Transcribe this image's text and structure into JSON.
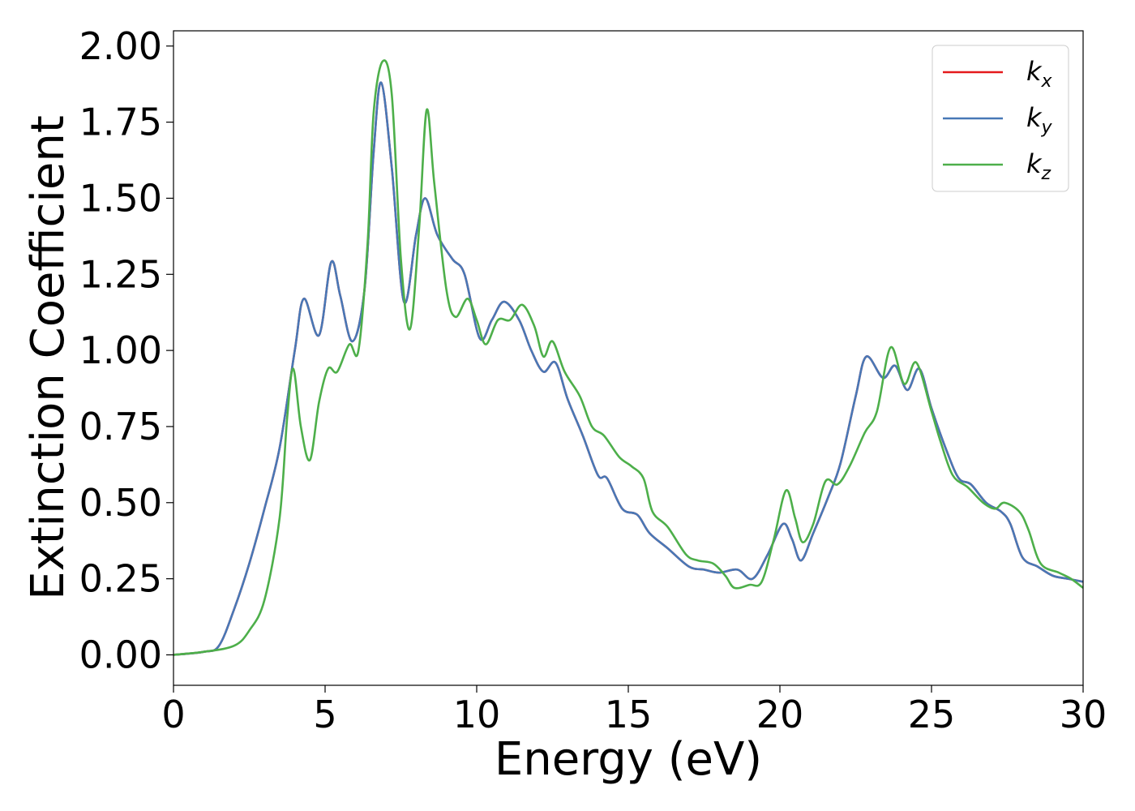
{
  "chart_data": {
    "type": "line",
    "title": "",
    "xlabel": "Energy (eV)",
    "ylabel": "Extinction Coefficient",
    "xlim": [
      0,
      30
    ],
    "ylim": [
      -0.1,
      2.05
    ],
    "xticks": [
      0,
      5,
      10,
      15,
      20,
      25,
      30
    ],
    "xtick_labels": [
      "0",
      "5",
      "10",
      "15",
      "20",
      "25",
      "30"
    ],
    "yticks": [
      0.0,
      0.25,
      0.5,
      0.75,
      1.0,
      1.25,
      1.5,
      1.75,
      2.0
    ],
    "ytick_labels": [
      "0.00",
      "0.25",
      "0.50",
      "0.75",
      "1.00",
      "1.25",
      "1.50",
      "1.75",
      "2.00"
    ],
    "grid": false,
    "legend_position": "top-right",
    "series": [
      {
        "name": "k",
        "subscript": "x",
        "color": "#e41a1c",
        "points": [
          [
            0,
            0.0
          ],
          [
            1,
            0.01
          ],
          [
            1.5,
            0.03
          ],
          [
            2,
            0.15
          ],
          [
            2.5,
            0.3
          ],
          [
            3,
            0.48
          ],
          [
            3.5,
            0.68
          ],
          [
            4,
            1.0
          ],
          [
            4.3,
            1.17
          ],
          [
            4.8,
            1.05
          ],
          [
            5.2,
            1.29
          ],
          [
            5.5,
            1.18
          ],
          [
            5.9,
            1.03
          ],
          [
            6.3,
            1.2
          ],
          [
            6.6,
            1.65
          ],
          [
            6.85,
            1.88
          ],
          [
            7.2,
            1.6
          ],
          [
            7.6,
            1.16
          ],
          [
            8,
            1.38
          ],
          [
            8.3,
            1.5
          ],
          [
            8.7,
            1.38
          ],
          [
            9.2,
            1.3
          ],
          [
            9.6,
            1.25
          ],
          [
            10.1,
            1.04
          ],
          [
            10.5,
            1.1
          ],
          [
            10.9,
            1.16
          ],
          [
            11.4,
            1.1
          ],
          [
            11.8,
            1.0
          ],
          [
            12.2,
            0.93
          ],
          [
            12.6,
            0.96
          ],
          [
            13,
            0.84
          ],
          [
            13.5,
            0.72
          ],
          [
            14,
            0.59
          ],
          [
            14.3,
            0.58
          ],
          [
            14.8,
            0.48
          ],
          [
            15.3,
            0.46
          ],
          [
            15.7,
            0.4
          ],
          [
            16.3,
            0.35
          ],
          [
            17,
            0.29
          ],
          [
            17.5,
            0.28
          ],
          [
            18,
            0.27
          ],
          [
            18.6,
            0.28
          ],
          [
            19.1,
            0.25
          ],
          [
            19.6,
            0.33
          ],
          [
            20.1,
            0.43
          ],
          [
            20.4,
            0.38
          ],
          [
            20.7,
            0.31
          ],
          [
            21.1,
            0.4
          ],
          [
            21.6,
            0.52
          ],
          [
            22,
            0.63
          ],
          [
            22.5,
            0.85
          ],
          [
            22.85,
            0.98
          ],
          [
            23.4,
            0.91
          ],
          [
            23.8,
            0.95
          ],
          [
            24.2,
            0.87
          ],
          [
            24.6,
            0.94
          ],
          [
            25,
            0.81
          ],
          [
            25.5,
            0.67
          ],
          [
            25.9,
            0.58
          ],
          [
            26.3,
            0.56
          ],
          [
            26.8,
            0.5
          ],
          [
            27.3,
            0.47
          ],
          [
            27.6,
            0.43
          ],
          [
            28,
            0.32
          ],
          [
            28.5,
            0.29
          ],
          [
            29,
            0.26
          ],
          [
            29.5,
            0.25
          ],
          [
            30,
            0.24
          ]
        ]
      },
      {
        "name": "k",
        "subscript": "y",
        "color": "#4878b6",
        "points": [
          [
            0,
            0.0
          ],
          [
            1,
            0.01
          ],
          [
            1.5,
            0.03
          ],
          [
            2,
            0.15
          ],
          [
            2.5,
            0.3
          ],
          [
            3,
            0.48
          ],
          [
            3.5,
            0.68
          ],
          [
            4,
            1.0
          ],
          [
            4.3,
            1.17
          ],
          [
            4.8,
            1.05
          ],
          [
            5.2,
            1.29
          ],
          [
            5.5,
            1.18
          ],
          [
            5.9,
            1.03
          ],
          [
            6.3,
            1.2
          ],
          [
            6.6,
            1.65
          ],
          [
            6.85,
            1.88
          ],
          [
            7.2,
            1.6
          ],
          [
            7.6,
            1.16
          ],
          [
            8,
            1.38
          ],
          [
            8.3,
            1.5
          ],
          [
            8.7,
            1.38
          ],
          [
            9.2,
            1.3
          ],
          [
            9.6,
            1.25
          ],
          [
            10.1,
            1.04
          ],
          [
            10.5,
            1.1
          ],
          [
            10.9,
            1.16
          ],
          [
            11.4,
            1.1
          ],
          [
            11.8,
            1.0
          ],
          [
            12.2,
            0.93
          ],
          [
            12.6,
            0.96
          ],
          [
            13,
            0.84
          ],
          [
            13.5,
            0.72
          ],
          [
            14,
            0.59
          ],
          [
            14.3,
            0.58
          ],
          [
            14.8,
            0.48
          ],
          [
            15.3,
            0.46
          ],
          [
            15.7,
            0.4
          ],
          [
            16.3,
            0.35
          ],
          [
            17,
            0.29
          ],
          [
            17.5,
            0.28
          ],
          [
            18,
            0.27
          ],
          [
            18.6,
            0.28
          ],
          [
            19.1,
            0.25
          ],
          [
            19.6,
            0.33
          ],
          [
            20.1,
            0.43
          ],
          [
            20.4,
            0.38
          ],
          [
            20.7,
            0.31
          ],
          [
            21.1,
            0.4
          ],
          [
            21.6,
            0.52
          ],
          [
            22,
            0.63
          ],
          [
            22.5,
            0.85
          ],
          [
            22.85,
            0.98
          ],
          [
            23.4,
            0.91
          ],
          [
            23.8,
            0.95
          ],
          [
            24.2,
            0.87
          ],
          [
            24.6,
            0.94
          ],
          [
            25,
            0.81
          ],
          [
            25.5,
            0.67
          ],
          [
            25.9,
            0.58
          ],
          [
            26.3,
            0.56
          ],
          [
            26.8,
            0.5
          ],
          [
            27.3,
            0.47
          ],
          [
            27.6,
            0.43
          ],
          [
            28,
            0.32
          ],
          [
            28.5,
            0.29
          ],
          [
            29,
            0.26
          ],
          [
            29.5,
            0.25
          ],
          [
            30,
            0.24
          ]
        ]
      },
      {
        "name": "k",
        "subscript": "z",
        "color": "#4daf4a",
        "points": [
          [
            0,
            0.0
          ],
          [
            1,
            0.01
          ],
          [
            2,
            0.03
          ],
          [
            2.5,
            0.08
          ],
          [
            3,
            0.18
          ],
          [
            3.5,
            0.45
          ],
          [
            3.75,
            0.78
          ],
          [
            3.95,
            0.94
          ],
          [
            4.2,
            0.75
          ],
          [
            4.5,
            0.64
          ],
          [
            4.8,
            0.83
          ],
          [
            5.1,
            0.94
          ],
          [
            5.4,
            0.93
          ],
          [
            5.8,
            1.02
          ],
          [
            6.1,
            1.0
          ],
          [
            6.4,
            1.35
          ],
          [
            6.6,
            1.78
          ],
          [
            6.9,
            1.95
          ],
          [
            7.2,
            1.84
          ],
          [
            7.5,
            1.3
          ],
          [
            7.8,
            1.07
          ],
          [
            8.1,
            1.4
          ],
          [
            8.35,
            1.79
          ],
          [
            8.6,
            1.55
          ],
          [
            9.0,
            1.2
          ],
          [
            9.3,
            1.11
          ],
          [
            9.7,
            1.17
          ],
          [
            10.0,
            1.1
          ],
          [
            10.3,
            1.02
          ],
          [
            10.7,
            1.1
          ],
          [
            11.1,
            1.1
          ],
          [
            11.5,
            1.15
          ],
          [
            11.9,
            1.08
          ],
          [
            12.2,
            0.98
          ],
          [
            12.5,
            1.03
          ],
          [
            12.9,
            0.93
          ],
          [
            13.4,
            0.85
          ],
          [
            13.8,
            0.75
          ],
          [
            14.2,
            0.72
          ],
          [
            14.7,
            0.65
          ],
          [
            15.1,
            0.62
          ],
          [
            15.5,
            0.58
          ],
          [
            15.8,
            0.47
          ],
          [
            16.3,
            0.42
          ],
          [
            16.9,
            0.33
          ],
          [
            17.3,
            0.31
          ],
          [
            17.8,
            0.3
          ],
          [
            18.2,
            0.26
          ],
          [
            18.5,
            0.22
          ],
          [
            19.0,
            0.23
          ],
          [
            19.4,
            0.24
          ],
          [
            19.8,
            0.38
          ],
          [
            20.2,
            0.54
          ],
          [
            20.5,
            0.45
          ],
          [
            20.75,
            0.37
          ],
          [
            21.1,
            0.43
          ],
          [
            21.5,
            0.57
          ],
          [
            21.9,
            0.56
          ],
          [
            22.3,
            0.62
          ],
          [
            22.8,
            0.73
          ],
          [
            23.2,
            0.8
          ],
          [
            23.65,
            1.01
          ],
          [
            24.1,
            0.89
          ],
          [
            24.5,
            0.96
          ],
          [
            25.0,
            0.8
          ],
          [
            25.3,
            0.7
          ],
          [
            25.7,
            0.59
          ],
          [
            26.2,
            0.55
          ],
          [
            26.7,
            0.5
          ],
          [
            27.1,
            0.48
          ],
          [
            27.4,
            0.5
          ],
          [
            27.9,
            0.47
          ],
          [
            28.2,
            0.41
          ],
          [
            28.6,
            0.3
          ],
          [
            29.2,
            0.27
          ],
          [
            29.6,
            0.25
          ],
          [
            30.0,
            0.22
          ]
        ]
      }
    ]
  }
}
